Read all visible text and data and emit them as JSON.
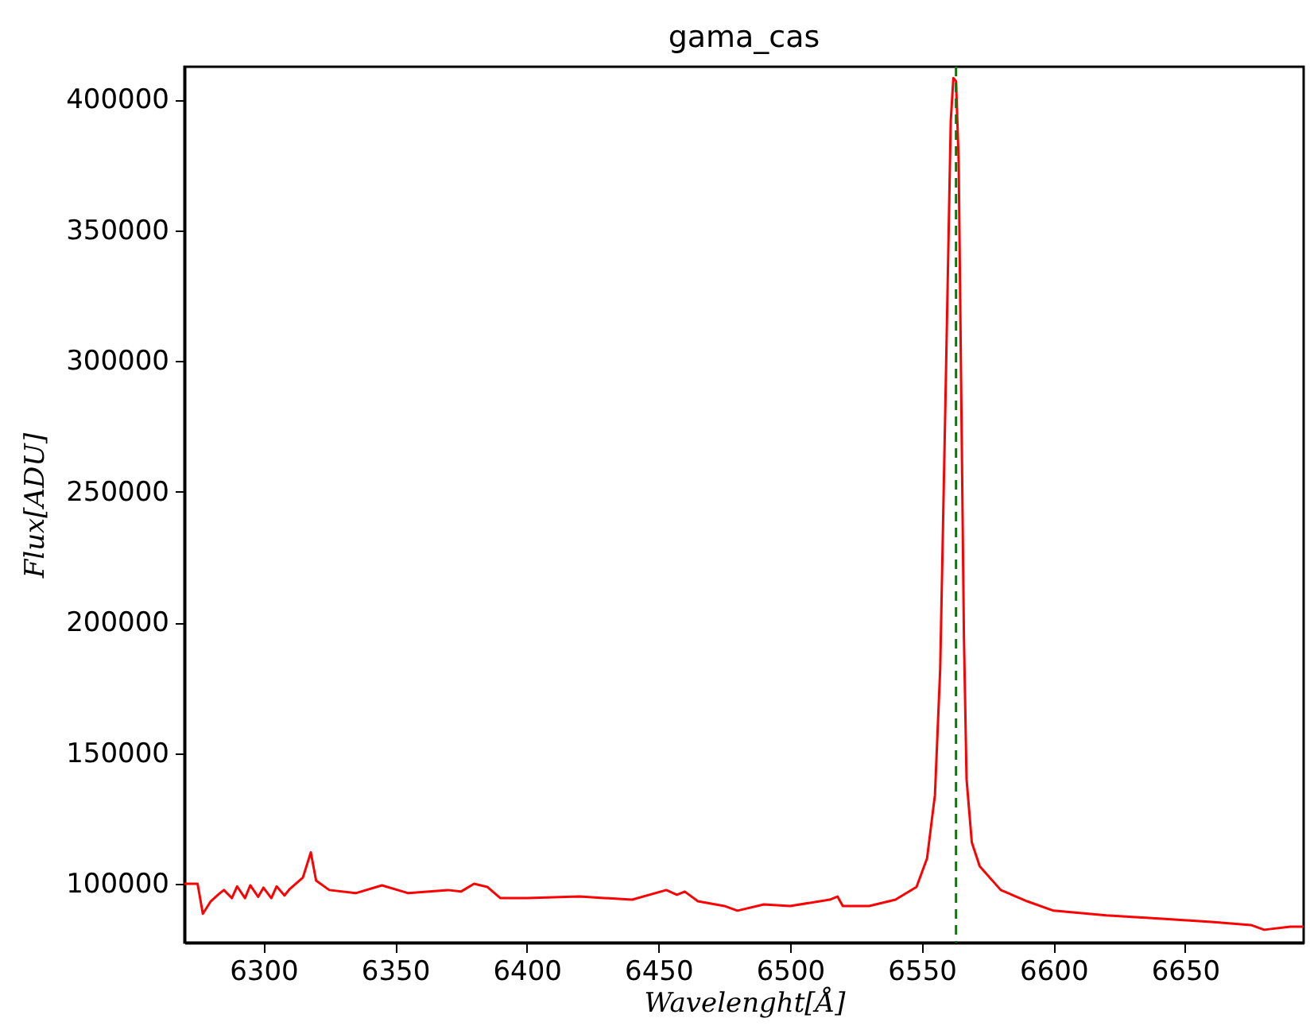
{
  "chart_data": {
    "type": "line",
    "title": "gama_cas",
    "xlabel": "Wavelenght[Å]",
    "ylabel": "Flux[ADU]",
    "x": [
      6270,
      6275,
      6277,
      6280,
      6283,
      6285,
      6288,
      6290,
      6293,
      6295,
      6298,
      6300,
      6303,
      6305,
      6308,
      6310,
      6315,
      6318,
      6320,
      6325,
      6335,
      6345,
      6355,
      6370,
      6375,
      6380,
      6385,
      6390,
      6400,
      6420,
      6440,
      6453,
      6457,
      6460,
      6465,
      6475,
      6480,
      6490,
      6500,
      6515,
      6518,
      6520,
      6530,
      6540,
      6548,
      6552,
      6555,
      6557,
      6559,
      6561,
      6562,
      6563,
      6564,
      6565,
      6566,
      6567,
      6569,
      6572,
      6580,
      6590,
      6600,
      6620,
      6640,
      6660,
      6675,
      6680,
      6690,
      6695
    ],
    "series": [
      {
        "color": "#ff0000",
        "values": [
          100000,
          100000,
          88500,
          93300,
          96000,
          97600,
          94500,
          99000,
          94500,
          99400,
          95000,
          98500,
          94500,
          99000,
          95500,
          98000,
          102400,
          112000,
          101200,
          97600,
          96400,
          99400,
          96400,
          97600,
          97000,
          100000,
          98800,
          94500,
          94500,
          95100,
          93900,
          97600,
          95800,
          97000,
          93300,
          91500,
          89700,
          92100,
          91500,
          93900,
          95100,
          91500,
          91500,
          93900,
          98800,
          109700,
          134000,
          182500,
          285600,
          391800,
          408200,
          407000,
          376600,
          285600,
          194600,
          140000,
          115800,
          106700,
          97600,
          93300,
          89700,
          87900,
          86700,
          85400,
          84200,
          82400,
          83600,
          83600
        ]
      }
    ],
    "xlim": [
      6270,
      6695
    ],
    "xticks": [
      6300,
      6350,
      6400,
      6450,
      6500,
      6550,
      6600,
      6650
    ],
    "ylim": [
      77500,
      412500
    ],
    "yticks": [
      100000,
      150000,
      200000,
      250000,
      300000,
      350000,
      400000
    ],
    "ref_lines": [
      {
        "axis": "x",
        "value": 6563,
        "color": "#008000",
        "line_style": "dashed"
      }
    ],
    "grid": false,
    "legend": false,
    "line_style": "solid"
  }
}
